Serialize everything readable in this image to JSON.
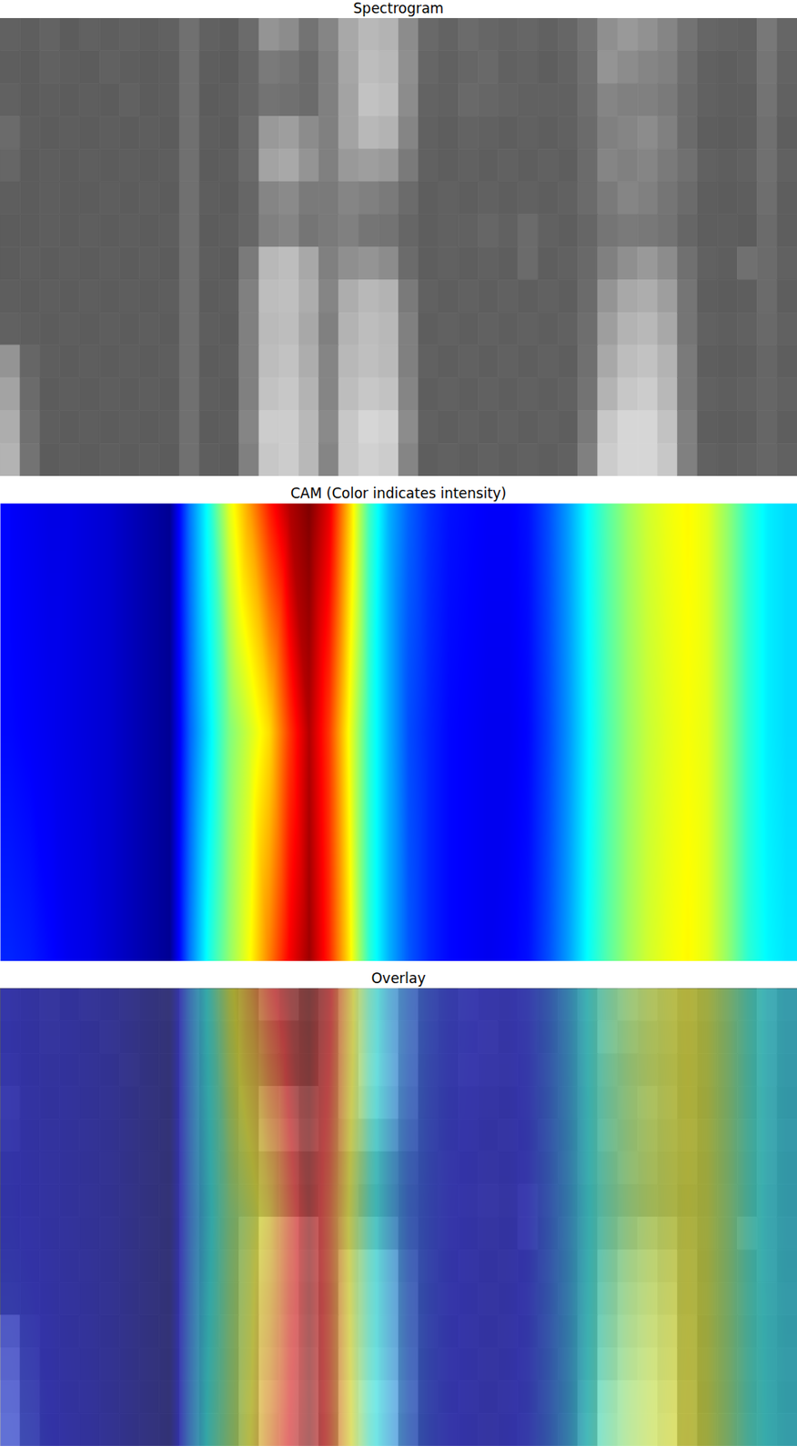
{
  "chart_data": [
    {
      "type": "heatmap",
      "title": "Spectrogram",
      "color": "gray",
      "tick_labels": false,
      "zlim": [
        0,
        1
      ],
      "cells": [
        [
          0.38,
          0.37,
          0.39,
          0.36,
          0.38,
          0.37,
          0.38,
          0.37,
          0.38,
          0.44,
          0.38,
          0.37,
          0.42,
          0.58,
          0.55,
          0.45,
          0.52,
          0.66,
          0.72,
          0.7,
          0.55,
          0.41,
          0.39,
          0.42,
          0.4,
          0.39,
          0.4,
          0.38,
          0.4,
          0.45,
          0.56,
          0.6,
          0.57,
          0.52,
          0.45,
          0.4,
          0.39,
          0.38,
          0.47,
          0.4
        ],
        [
          0.37,
          0.36,
          0.38,
          0.37,
          0.36,
          0.38,
          0.37,
          0.36,
          0.37,
          0.44,
          0.37,
          0.36,
          0.4,
          0.48,
          0.46,
          0.42,
          0.5,
          0.65,
          0.74,
          0.72,
          0.56,
          0.4,
          0.38,
          0.4,
          0.41,
          0.38,
          0.39,
          0.37,
          0.39,
          0.44,
          0.58,
          0.55,
          0.52,
          0.5,
          0.43,
          0.38,
          0.37,
          0.38,
          0.46,
          0.39
        ],
        [
          0.38,
          0.36,
          0.37,
          0.36,
          0.37,
          0.36,
          0.38,
          0.36,
          0.37,
          0.44,
          0.36,
          0.37,
          0.4,
          0.45,
          0.44,
          0.42,
          0.5,
          0.64,
          0.76,
          0.74,
          0.55,
          0.39,
          0.38,
          0.41,
          0.4,
          0.39,
          0.38,
          0.38,
          0.38,
          0.43,
          0.52,
          0.5,
          0.5,
          0.48,
          0.42,
          0.38,
          0.37,
          0.37,
          0.45,
          0.38
        ],
        [
          0.42,
          0.37,
          0.36,
          0.37,
          0.36,
          0.37,
          0.36,
          0.37,
          0.36,
          0.44,
          0.37,
          0.36,
          0.42,
          0.6,
          0.62,
          0.55,
          0.5,
          0.64,
          0.72,
          0.7,
          0.52,
          0.38,
          0.37,
          0.39,
          0.38,
          0.37,
          0.38,
          0.37,
          0.38,
          0.42,
          0.5,
          0.52,
          0.55,
          0.5,
          0.42,
          0.37,
          0.36,
          0.37,
          0.44,
          0.37
        ],
        [
          0.4,
          0.36,
          0.37,
          0.36,
          0.37,
          0.36,
          0.37,
          0.36,
          0.37,
          0.44,
          0.36,
          0.37,
          0.42,
          0.64,
          0.66,
          0.58,
          0.5,
          0.6,
          0.62,
          0.6,
          0.48,
          0.38,
          0.37,
          0.38,
          0.37,
          0.38,
          0.37,
          0.38,
          0.37,
          0.42,
          0.52,
          0.5,
          0.52,
          0.48,
          0.44,
          0.38,
          0.37,
          0.38,
          0.44,
          0.38
        ],
        [
          0.37,
          0.36,
          0.37,
          0.36,
          0.36,
          0.37,
          0.36,
          0.37,
          0.36,
          0.44,
          0.37,
          0.36,
          0.4,
          0.52,
          0.54,
          0.48,
          0.48,
          0.52,
          0.5,
          0.48,
          0.42,
          0.37,
          0.38,
          0.37,
          0.38,
          0.37,
          0.38,
          0.37,
          0.38,
          0.42,
          0.48,
          0.52,
          0.5,
          0.46,
          0.42,
          0.37,
          0.36,
          0.37,
          0.43,
          0.37
        ],
        [
          0.36,
          0.36,
          0.37,
          0.36,
          0.37,
          0.36,
          0.37,
          0.36,
          0.37,
          0.44,
          0.36,
          0.37,
          0.4,
          0.5,
          0.52,
          0.46,
          0.48,
          0.5,
          0.46,
          0.45,
          0.4,
          0.37,
          0.38,
          0.38,
          0.4,
          0.38,
          0.42,
          0.38,
          0.37,
          0.4,
          0.46,
          0.48,
          0.47,
          0.45,
          0.4,
          0.37,
          0.37,
          0.36,
          0.42,
          0.37
        ],
        [
          0.36,
          0.37,
          0.36,
          0.37,
          0.36,
          0.37,
          0.36,
          0.37,
          0.36,
          0.44,
          0.37,
          0.36,
          0.48,
          0.72,
          0.74,
          0.66,
          0.5,
          0.56,
          0.58,
          0.55,
          0.42,
          0.37,
          0.38,
          0.37,
          0.38,
          0.37,
          0.42,
          0.37,
          0.38,
          0.41,
          0.5,
          0.56,
          0.6,
          0.55,
          0.44,
          0.38,
          0.37,
          0.44,
          0.42,
          0.38
        ],
        [
          0.37,
          0.36,
          0.37,
          0.36,
          0.37,
          0.36,
          0.37,
          0.36,
          0.37,
          0.44,
          0.36,
          0.37,
          0.5,
          0.74,
          0.75,
          0.68,
          0.52,
          0.68,
          0.72,
          0.7,
          0.48,
          0.38,
          0.37,
          0.38,
          0.37,
          0.38,
          0.37,
          0.38,
          0.37,
          0.42,
          0.58,
          0.66,
          0.68,
          0.62,
          0.46,
          0.37,
          0.36,
          0.37,
          0.42,
          0.37
        ],
        [
          0.38,
          0.37,
          0.36,
          0.37,
          0.36,
          0.37,
          0.36,
          0.37,
          0.36,
          0.44,
          0.37,
          0.36,
          0.5,
          0.73,
          0.74,
          0.66,
          0.5,
          0.7,
          0.74,
          0.72,
          0.5,
          0.37,
          0.38,
          0.37,
          0.38,
          0.37,
          0.38,
          0.37,
          0.38,
          0.43,
          0.62,
          0.7,
          0.72,
          0.66,
          0.46,
          0.38,
          0.37,
          0.38,
          0.41,
          0.38
        ],
        [
          0.58,
          0.4,
          0.37,
          0.36,
          0.37,
          0.36,
          0.37,
          0.36,
          0.37,
          0.44,
          0.36,
          0.37,
          0.5,
          0.74,
          0.76,
          0.68,
          0.52,
          0.72,
          0.75,
          0.73,
          0.5,
          0.38,
          0.37,
          0.38,
          0.37,
          0.38,
          0.37,
          0.38,
          0.37,
          0.44,
          0.66,
          0.74,
          0.76,
          0.7,
          0.48,
          0.37,
          0.36,
          0.37,
          0.4,
          0.37
        ],
        [
          0.64,
          0.42,
          0.36,
          0.37,
          0.36,
          0.37,
          0.36,
          0.37,
          0.36,
          0.44,
          0.37,
          0.36,
          0.5,
          0.76,
          0.78,
          0.7,
          0.52,
          0.74,
          0.78,
          0.76,
          0.52,
          0.37,
          0.38,
          0.37,
          0.38,
          0.37,
          0.38,
          0.37,
          0.38,
          0.45,
          0.7,
          0.78,
          0.8,
          0.72,
          0.48,
          0.38,
          0.37,
          0.38,
          0.4,
          0.38
        ],
        [
          0.68,
          0.44,
          0.37,
          0.36,
          0.37,
          0.36,
          0.37,
          0.36,
          0.37,
          0.44,
          0.36,
          0.37,
          0.52,
          0.8,
          0.8,
          0.72,
          0.54,
          0.78,
          0.84,
          0.82,
          0.55,
          0.38,
          0.37,
          0.38,
          0.37,
          0.38,
          0.37,
          0.38,
          0.37,
          0.48,
          0.78,
          0.84,
          0.84,
          0.76,
          0.5,
          0.37,
          0.36,
          0.37,
          0.4,
          0.37
        ],
        [
          0.7,
          0.45,
          0.36,
          0.37,
          0.36,
          0.37,
          0.36,
          0.37,
          0.36,
          0.44,
          0.37,
          0.36,
          0.5,
          0.78,
          0.8,
          0.72,
          0.52,
          0.78,
          0.82,
          0.8,
          0.52,
          0.37,
          0.38,
          0.37,
          0.38,
          0.37,
          0.38,
          0.37,
          0.38,
          0.5,
          0.8,
          0.84,
          0.84,
          0.78,
          0.5,
          0.38,
          0.37,
          0.38,
          0.4,
          0.38
        ]
      ]
    },
    {
      "type": "heatmap",
      "title": "CAM (Color indicates intensity)",
      "color": "jet",
      "tick_labels": false,
      "zlim": [
        0,
        1
      ],
      "cells": [
        [
          0.12,
          0.11,
          0.1,
          0.1,
          0.09,
          0.08,
          0.06,
          0.04,
          0.02,
          0.24,
          0.4,
          0.6,
          0.72,
          0.85,
          0.95,
          1.0,
          0.9,
          0.68,
          0.44,
          0.3,
          0.22,
          0.17,
          0.14,
          0.13,
          0.12,
          0.12,
          0.14,
          0.2,
          0.28,
          0.38,
          0.46,
          0.53,
          0.58,
          0.61,
          0.63,
          0.6,
          0.52,
          0.42,
          0.36,
          0.34
        ],
        [
          0.13,
          0.12,
          0.11,
          0.1,
          0.09,
          0.08,
          0.06,
          0.04,
          0.02,
          0.22,
          0.36,
          0.5,
          0.58,
          0.66,
          0.82,
          0.95,
          0.82,
          0.62,
          0.42,
          0.3,
          0.2,
          0.16,
          0.13,
          0.12,
          0.11,
          0.11,
          0.13,
          0.19,
          0.27,
          0.37,
          0.45,
          0.52,
          0.57,
          0.6,
          0.62,
          0.6,
          0.52,
          0.42,
          0.36,
          0.34
        ],
        [
          0.16,
          0.15,
          0.13,
          0.11,
          0.1,
          0.08,
          0.06,
          0.04,
          0.02,
          0.24,
          0.4,
          0.52,
          0.62,
          0.75,
          0.88,
          0.97,
          0.84,
          0.65,
          0.42,
          0.3,
          0.21,
          0.16,
          0.13,
          0.12,
          0.11,
          0.12,
          0.14,
          0.2,
          0.28,
          0.38,
          0.46,
          0.53,
          0.58,
          0.61,
          0.63,
          0.6,
          0.52,
          0.42,
          0.37,
          0.35
        ]
      ]
    },
    {
      "type": "overlay",
      "title": "Overlay",
      "tick_labels": false,
      "layers": [
        "Spectrogram",
        "CAM (Color indicates intensity)"
      ]
    }
  ]
}
